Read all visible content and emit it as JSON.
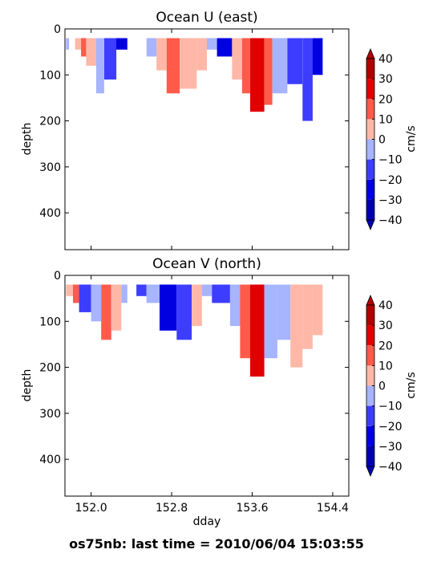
{
  "suptitle": "os75nb: last time = 2010/06/04 15:03:55",
  "colorbar": {
    "label": "cm/s",
    "levels": [
      -40,
      -30,
      -20,
      -10,
      0,
      10,
      20,
      30,
      40
    ],
    "tick_labels": [
      "−40",
      "−30",
      "−20",
      "−10",
      "0",
      "10",
      "20",
      "30",
      "40"
    ],
    "colors": [
      "#0000b0",
      "#0000e0",
      "#3d3dff",
      "#a7b4ff",
      "#ffb8a8",
      "#ff5a4a",
      "#e00000",
      "#b00000"
    ],
    "extend": "both"
  },
  "chart_data": [
    {
      "type": "heatmap",
      "title": "Ocean U (east)",
      "xlabel": "",
      "ylabel": "depth",
      "xlim": [
        151.74,
        154.56
      ],
      "ylim": [
        480,
        0
      ],
      "xticks": [
        152.0,
        152.8,
        153.6,
        154.4
      ],
      "xtick_labels": [],
      "yticks": [
        0,
        100,
        200,
        300,
        400
      ],
      "ytick_labels": [
        "0",
        "100",
        "200",
        "300",
        "400"
      ],
      "colorbar_label": "cm/s",
      "columns": [
        {
          "x": [
            151.75,
            151.78
          ],
          "depth": 45,
          "value": -5
        },
        {
          "x": [
            151.84,
            151.9
          ],
          "depth": 45,
          "value": 5
        },
        {
          "x": [
            151.9,
            151.95
          ],
          "depth": 60,
          "value": 15
        },
        {
          "x": [
            151.95,
            152.05
          ],
          "depth": 80,
          "value": 5
        },
        {
          "x": [
            152.05,
            152.13
          ],
          "depth": 140,
          "value": -5
        },
        {
          "x": [
            152.13,
            152.25
          ],
          "depth": 110,
          "value": -15
        },
        {
          "x": [
            152.25,
            152.36
          ],
          "depth": 45,
          "value": -25
        },
        {
          "x": [
            152.55,
            152.65
          ],
          "depth": 60,
          "value": -5
        },
        {
          "x": [
            152.65,
            152.75
          ],
          "depth": 90,
          "value": 5
        },
        {
          "x": [
            152.75,
            152.88
          ],
          "depth": 140,
          "value": 15
        },
        {
          "x": [
            152.88,
            153.05
          ],
          "depth": 130,
          "value": 5
        },
        {
          "x": [
            153.05,
            153.15
          ],
          "depth": 90,
          "value": 5
        },
        {
          "x": [
            153.15,
            153.25
          ],
          "depth": 45,
          "value": -5
        },
        {
          "x": [
            153.25,
            153.4
          ],
          "depth": 60,
          "value": -25
        },
        {
          "x": [
            153.4,
            153.5
          ],
          "depth": 110,
          "value": 5
        },
        {
          "x": [
            153.5,
            153.58
          ],
          "depth": 140,
          "value": 15
        },
        {
          "x": [
            153.58,
            153.72
          ],
          "depth": 180,
          "value": 20
        },
        {
          "x": [
            153.72,
            153.8
          ],
          "depth": 165,
          "value": 10
        },
        {
          "x": [
            153.8,
            153.95
          ],
          "depth": 140,
          "value": -5
        },
        {
          "x": [
            153.95,
            154.1
          ],
          "depth": 120,
          "value": -15
        },
        {
          "x": [
            154.1,
            154.2
          ],
          "depth": 200,
          "value": -15
        },
        {
          "x": [
            154.2,
            154.3
          ],
          "depth": 100,
          "value": -25
        }
      ]
    },
    {
      "type": "heatmap",
      "title": "Ocean V (north)",
      "xlabel": "dday",
      "ylabel": "depth",
      "xlim": [
        151.74,
        154.56
      ],
      "ylim": [
        480,
        0
      ],
      "xticks": [
        152.0,
        152.8,
        153.6,
        154.4
      ],
      "xtick_labels": [
        "152.0",
        "152.8",
        "153.6",
        "154.4"
      ],
      "yticks": [
        0,
        100,
        200,
        300,
        400
      ],
      "ytick_labels": [
        "0",
        "100",
        "200",
        "300",
        "400"
      ],
      "colorbar_label": "cm/s",
      "columns": [
        {
          "x": [
            151.75,
            151.82
          ],
          "depth": 45,
          "value": 5
        },
        {
          "x": [
            151.82,
            151.88
          ],
          "depth": 60,
          "value": 15
        },
        {
          "x": [
            151.88,
            152.0
          ],
          "depth": 80,
          "value": -15
        },
        {
          "x": [
            152.0,
            152.1
          ],
          "depth": 100,
          "value": -5
        },
        {
          "x": [
            152.1,
            152.2
          ],
          "depth": 140,
          "value": 15
        },
        {
          "x": [
            152.2,
            152.3
          ],
          "depth": 120,
          "value": 5
        },
        {
          "x": [
            152.3,
            152.36
          ],
          "depth": 60,
          "value": -5
        },
        {
          "x": [
            152.45,
            152.55
          ],
          "depth": 45,
          "value": -15
        },
        {
          "x": [
            152.55,
            152.68
          ],
          "depth": 60,
          "value": -5
        },
        {
          "x": [
            152.68,
            152.85
          ],
          "depth": 120,
          "value": -25
        },
        {
          "x": [
            152.85,
            153.0
          ],
          "depth": 140,
          "value": -15
        },
        {
          "x": [
            153.0,
            153.1
          ],
          "depth": 110,
          "value": 5
        },
        {
          "x": [
            153.1,
            153.2
          ],
          "depth": 45,
          "value": -5
        },
        {
          "x": [
            153.2,
            153.38
          ],
          "depth": 60,
          "value": -15
        },
        {
          "x": [
            153.38,
            153.48
          ],
          "depth": 110,
          "value": -5
        },
        {
          "x": [
            153.48,
            153.58
          ],
          "depth": 180,
          "value": 15
        },
        {
          "x": [
            153.58,
            153.72
          ],
          "depth": 220,
          "value": 25
        },
        {
          "x": [
            153.72,
            153.85
          ],
          "depth": 180,
          "value": -5
        },
        {
          "x": [
            153.85,
            153.98
          ],
          "depth": 140,
          "value": -10
        },
        {
          "x": [
            153.98,
            154.1
          ],
          "depth": 200,
          "value": 5
        },
        {
          "x": [
            154.1,
            154.2
          ],
          "depth": 160,
          "value": 5
        },
        {
          "x": [
            154.2,
            154.3
          ],
          "depth": 130,
          "value": 5
        }
      ]
    }
  ]
}
